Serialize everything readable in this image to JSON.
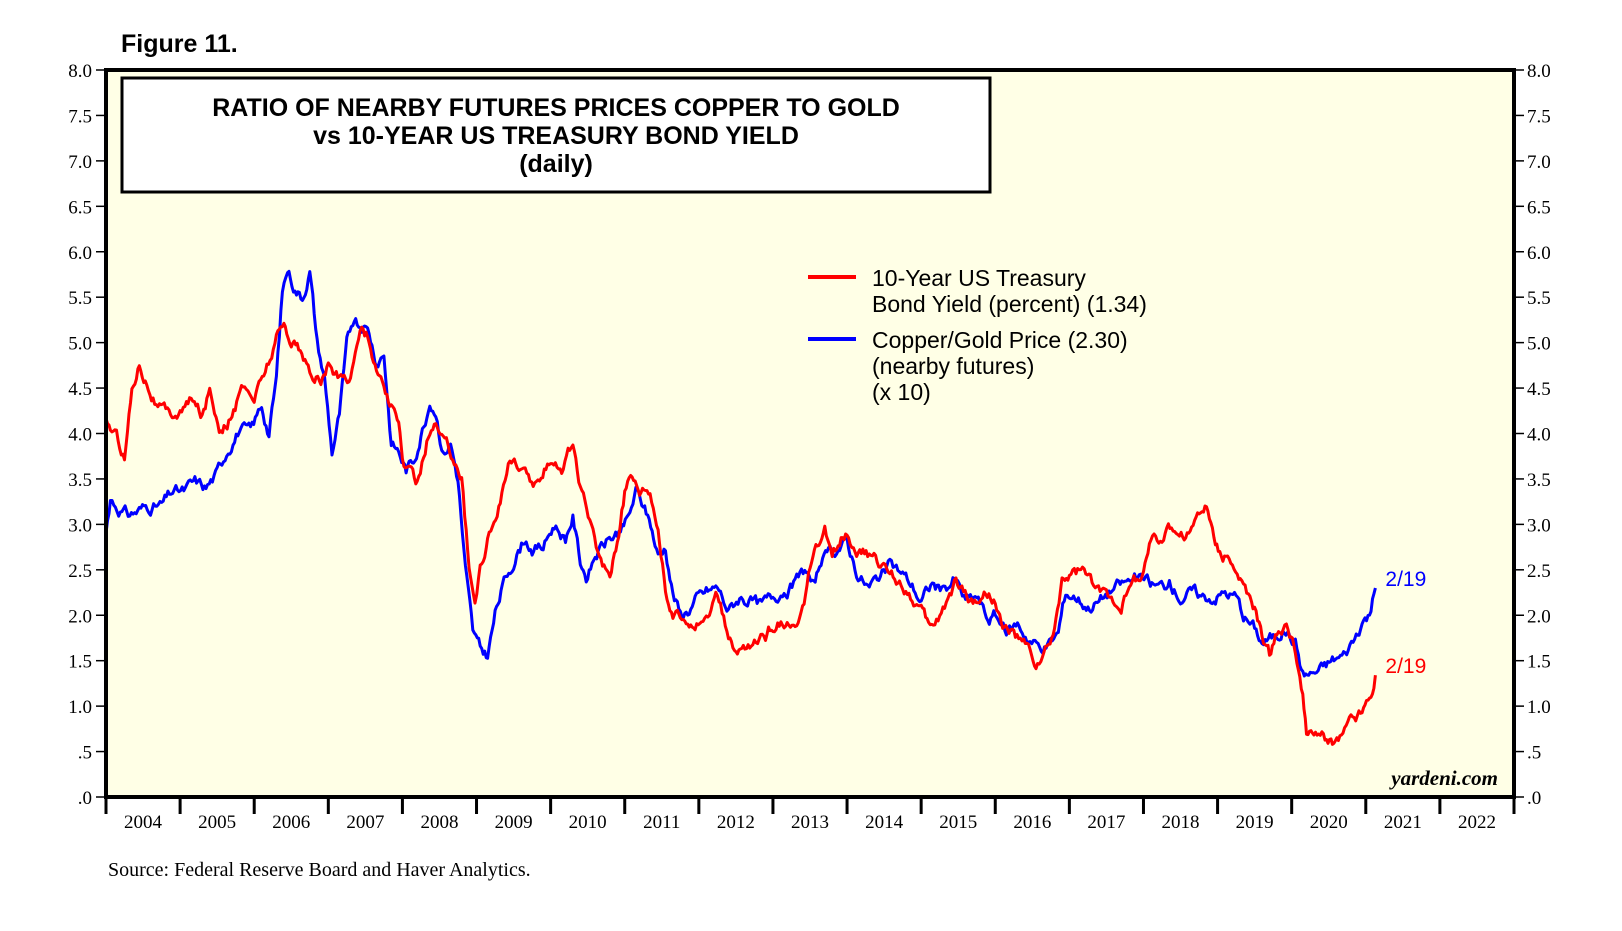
{
  "figure_label": "Figure 11.",
  "source": "Source: Federal Reserve Board and Haver Analytics.",
  "watermark": "yardeni.com",
  "chart_data": {
    "type": "line",
    "title": "RATIO OF NEARBY FUTURES PRICES COPPER TO GOLD",
    "subtitle": "vs 10-YEAR US TREASURY BOND YIELD",
    "frequency_label": "(daily)",
    "xlabel": "",
    "ylabel": "",
    "xlim": [
      2004.0,
      2023.0
    ],
    "ylim": [
      0,
      8
    ],
    "yticks": [
      0,
      0.5,
      1,
      1.5,
      2,
      2.5,
      3,
      3.5,
      4,
      4.5,
      5,
      5.5,
      6,
      6.5,
      7,
      7.5,
      8
    ],
    "ytick_labels": [
      ".0",
      ".5",
      "1.0",
      "1.5",
      "2.0",
      "2.5",
      "3.0",
      "3.5",
      "4.0",
      "4.5",
      "5.0",
      "5.5",
      "6.0",
      "6.5",
      "7.0",
      "7.5",
      "8.0"
    ],
    "year_labels": [
      "2004",
      "2005",
      "2006",
      "2007",
      "2008",
      "2009",
      "2010",
      "2011",
      "2012",
      "2013",
      "2014",
      "2015",
      "2016",
      "2017",
      "2018",
      "2019",
      "2020",
      "2021",
      "2022"
    ],
    "background_color": "#ffffe6",
    "legend_position": "top-center",
    "series": [
      {
        "name": "10-Year US Treasury Bond Yield (percent) (1.34)",
        "legend_lines": [
          "10-Year US Treasury",
          "Bond Yield (percent) (1.34)"
        ],
        "color": "#ff0000",
        "end_label": "2/19",
        "points": [
          [
            2004.0,
            4.15
          ],
          [
            2004.12,
            4.0
          ],
          [
            2004.25,
            3.75
          ],
          [
            2004.35,
            4.5
          ],
          [
            2004.45,
            4.8
          ],
          [
            2004.55,
            4.6
          ],
          [
            2004.7,
            4.3
          ],
          [
            2004.85,
            4.2
          ],
          [
            2005.0,
            4.25
          ],
          [
            2005.15,
            4.35
          ],
          [
            2005.3,
            4.2
          ],
          [
            2005.4,
            4.5
          ],
          [
            2005.55,
            4.05
          ],
          [
            2005.7,
            4.2
          ],
          [
            2005.85,
            4.5
          ],
          [
            2006.0,
            4.4
          ],
          [
            2006.15,
            4.7
          ],
          [
            2006.3,
            5.05
          ],
          [
            2006.4,
            5.2
          ],
          [
            2006.5,
            5.05
          ],
          [
            2006.6,
            4.95
          ],
          [
            2006.75,
            4.65
          ],
          [
            2006.9,
            4.6
          ],
          [
            2007.0,
            4.75
          ],
          [
            2007.15,
            4.6
          ],
          [
            2007.3,
            4.65
          ],
          [
            2007.45,
            5.2
          ],
          [
            2007.55,
            5.05
          ],
          [
            2007.65,
            4.7
          ],
          [
            2007.75,
            4.55
          ],
          [
            2007.85,
            4.3
          ],
          [
            2007.95,
            4.1
          ],
          [
            2008.0,
            3.7
          ],
          [
            2008.1,
            3.55
          ],
          [
            2008.2,
            3.45
          ],
          [
            2008.35,
            4.0
          ],
          [
            2008.45,
            4.1
          ],
          [
            2008.55,
            3.9
          ],
          [
            2008.7,
            3.75
          ],
          [
            2008.8,
            3.55
          ],
          [
            2008.9,
            2.5
          ],
          [
            2008.98,
            2.15
          ],
          [
            2009.05,
            2.55
          ],
          [
            2009.15,
            2.85
          ],
          [
            2009.3,
            3.2
          ],
          [
            2009.45,
            3.75
          ],
          [
            2009.55,
            3.6
          ],
          [
            2009.7,
            3.5
          ],
          [
            2009.85,
            3.4
          ],
          [
            2010.0,
            3.75
          ],
          [
            2010.15,
            3.65
          ],
          [
            2010.3,
            3.9
          ],
          [
            2010.4,
            3.4
          ],
          [
            2010.55,
            2.95
          ],
          [
            2010.7,
            2.55
          ],
          [
            2010.8,
            2.5
          ],
          [
            2010.9,
            2.85
          ],
          [
            2011.0,
            3.35
          ],
          [
            2011.1,
            3.5
          ],
          [
            2011.2,
            3.4
          ],
          [
            2011.3,
            3.45
          ],
          [
            2011.45,
            3.0
          ],
          [
            2011.55,
            2.3
          ],
          [
            2011.65,
            2.0
          ],
          [
            2011.75,
            1.95
          ],
          [
            2011.85,
            2.0
          ],
          [
            2011.95,
            1.95
          ],
          [
            2012.1,
            2.0
          ],
          [
            2012.25,
            2.2
          ],
          [
            2012.4,
            1.75
          ],
          [
            2012.5,
            1.55
          ],
          [
            2012.6,
            1.65
          ],
          [
            2012.75,
            1.7
          ],
          [
            2012.9,
            1.75
          ],
          [
            2013.0,
            1.9
          ],
          [
            2013.15,
            1.95
          ],
          [
            2013.3,
            1.8
          ],
          [
            2013.4,
            2.0
          ],
          [
            2013.5,
            2.5
          ],
          [
            2013.6,
            2.7
          ],
          [
            2013.7,
            2.9
          ],
          [
            2013.8,
            2.65
          ],
          [
            2013.9,
            2.85
          ],
          [
            2014.0,
            2.95
          ],
          [
            2014.15,
            2.7
          ],
          [
            2014.3,
            2.65
          ],
          [
            2014.45,
            2.55
          ],
          [
            2014.6,
            2.45
          ],
          [
            2014.75,
            2.35
          ],
          [
            2014.9,
            2.2
          ],
          [
            2015.0,
            2.05
          ],
          [
            2015.1,
            1.85
          ],
          [
            2015.25,
            2.0
          ],
          [
            2015.45,
            2.35
          ],
          [
            2015.55,
            2.3
          ],
          [
            2015.7,
            2.15
          ],
          [
            2015.85,
            2.25
          ],
          [
            2016.0,
            2.2
          ],
          [
            2016.1,
            1.85
          ],
          [
            2016.25,
            1.8
          ],
          [
            2016.45,
            1.6
          ],
          [
            2016.55,
            1.45
          ],
          [
            2016.7,
            1.6
          ],
          [
            2016.8,
            1.8
          ],
          [
            2016.9,
            2.4
          ],
          [
            2017.0,
            2.45
          ],
          [
            2017.2,
            2.5
          ],
          [
            2017.35,
            2.25
          ],
          [
            2017.5,
            2.25
          ],
          [
            2017.7,
            2.15
          ],
          [
            2017.85,
            2.35
          ],
          [
            2018.0,
            2.45
          ],
          [
            2018.1,
            2.85
          ],
          [
            2018.25,
            2.85
          ],
          [
            2018.4,
            2.95
          ],
          [
            2018.55,
            2.9
          ],
          [
            2018.65,
            2.95
          ],
          [
            2018.75,
            3.15
          ],
          [
            2018.85,
            3.2
          ],
          [
            2018.95,
            2.85
          ],
          [
            2019.05,
            2.7
          ],
          [
            2019.2,
            2.6
          ],
          [
            2019.35,
            2.3
          ],
          [
            2019.5,
            2.05
          ],
          [
            2019.6,
            1.75
          ],
          [
            2019.7,
            1.55
          ],
          [
            2019.8,
            1.8
          ],
          [
            2019.95,
            1.85
          ],
          [
            2020.05,
            1.65
          ],
          [
            2020.15,
            1.1
          ],
          [
            2020.2,
            0.65
          ],
          [
            2020.3,
            0.7
          ],
          [
            2020.45,
            0.65
          ],
          [
            2020.55,
            0.6
          ],
          [
            2020.65,
            0.65
          ],
          [
            2020.8,
            0.85
          ],
          [
            2020.95,
            0.95
          ],
          [
            2021.05,
            1.1
          ],
          [
            2021.13,
            1.34
          ]
        ]
      },
      {
        "name": "Copper/Gold Price (2.30) (nearby futures) (x 10)",
        "legend_lines": [
          "Copper/Gold Price (2.30)",
          "(nearby futures)",
          "(x 10)"
        ],
        "color": "#0000ff",
        "end_label": "2/19",
        "points": [
          [
            2004.0,
            2.9
          ],
          [
            2004.06,
            3.3
          ],
          [
            2004.15,
            3.2
          ],
          [
            2004.3,
            3.1
          ],
          [
            2004.45,
            3.15
          ],
          [
            2004.6,
            3.2
          ],
          [
            2004.75,
            3.2
          ],
          [
            2004.9,
            3.35
          ],
          [
            2005.05,
            3.35
          ],
          [
            2005.2,
            3.45
          ],
          [
            2005.35,
            3.4
          ],
          [
            2005.5,
            3.55
          ],
          [
            2005.65,
            3.85
          ],
          [
            2005.8,
            4.05
          ],
          [
            2005.95,
            4.0
          ],
          [
            2006.1,
            4.3
          ],
          [
            2006.2,
            4.0
          ],
          [
            2006.3,
            4.6
          ],
          [
            2006.38,
            5.55
          ],
          [
            2006.45,
            5.8
          ],
          [
            2006.55,
            5.6
          ],
          [
            2006.65,
            5.5
          ],
          [
            2006.75,
            5.8
          ],
          [
            2006.85,
            5.0
          ],
          [
            2006.95,
            4.6
          ],
          [
            2007.05,
            3.8
          ],
          [
            2007.15,
            4.2
          ],
          [
            2007.25,
            4.95
          ],
          [
            2007.35,
            5.3
          ],
          [
            2007.45,
            5.2
          ],
          [
            2007.55,
            5.1
          ],
          [
            2007.65,
            4.8
          ],
          [
            2007.75,
            4.9
          ],
          [
            2007.85,
            3.9
          ],
          [
            2007.95,
            3.8
          ],
          [
            2008.05,
            3.6
          ],
          [
            2008.15,
            3.7
          ],
          [
            2008.25,
            4.0
          ],
          [
            2008.35,
            4.3
          ],
          [
            2008.45,
            4.25
          ],
          [
            2008.55,
            3.8
          ],
          [
            2008.65,
            3.9
          ],
          [
            2008.75,
            3.5
          ],
          [
            2008.85,
            2.5
          ],
          [
            2008.95,
            1.8
          ],
          [
            2009.05,
            1.6
          ],
          [
            2009.15,
            1.55
          ],
          [
            2009.25,
            2.0
          ],
          [
            2009.35,
            2.3
          ],
          [
            2009.5,
            2.6
          ],
          [
            2009.65,
            2.85
          ],
          [
            2009.75,
            2.75
          ],
          [
            2009.9,
            2.75
          ],
          [
            2010.05,
            3.0
          ],
          [
            2010.2,
            2.85
          ],
          [
            2010.3,
            3.1
          ],
          [
            2010.4,
            2.6
          ],
          [
            2010.5,
            2.4
          ],
          [
            2010.6,
            2.65
          ],
          [
            2010.75,
            2.8
          ],
          [
            2010.9,
            2.9
          ],
          [
            2011.05,
            3.05
          ],
          [
            2011.15,
            3.35
          ],
          [
            2011.25,
            3.2
          ],
          [
            2011.35,
            3.0
          ],
          [
            2011.45,
            2.65
          ],
          [
            2011.55,
            2.75
          ],
          [
            2011.65,
            2.25
          ],
          [
            2011.75,
            2.0
          ],
          [
            2011.85,
            2.05
          ],
          [
            2011.95,
            2.15
          ],
          [
            2012.1,
            2.25
          ],
          [
            2012.25,
            2.3
          ],
          [
            2012.4,
            2.05
          ],
          [
            2012.55,
            2.2
          ],
          [
            2012.7,
            2.15
          ],
          [
            2012.85,
            2.1
          ],
          [
            2013.0,
            2.2
          ],
          [
            2013.15,
            2.3
          ],
          [
            2013.3,
            2.35
          ],
          [
            2013.45,
            2.5
          ],
          [
            2013.55,
            2.3
          ],
          [
            2013.65,
            2.6
          ],
          [
            2013.75,
            2.65
          ],
          [
            2013.9,
            2.75
          ],
          [
            2014.0,
            2.8
          ],
          [
            2014.15,
            2.45
          ],
          [
            2014.3,
            2.3
          ],
          [
            2014.45,
            2.45
          ],
          [
            2014.6,
            2.55
          ],
          [
            2014.75,
            2.45
          ],
          [
            2014.9,
            2.3
          ],
          [
            2015.0,
            2.15
          ],
          [
            2015.15,
            2.35
          ],
          [
            2015.3,
            2.25
          ],
          [
            2015.45,
            2.4
          ],
          [
            2015.6,
            2.15
          ],
          [
            2015.75,
            2.2
          ],
          [
            2015.9,
            1.95
          ],
          [
            2016.0,
            2.0
          ],
          [
            2016.15,
            1.8
          ],
          [
            2016.3,
            1.9
          ],
          [
            2016.45,
            1.75
          ],
          [
            2016.6,
            1.65
          ],
          [
            2016.75,
            1.7
          ],
          [
            2016.85,
            1.8
          ],
          [
            2016.95,
            2.25
          ],
          [
            2017.1,
            2.2
          ],
          [
            2017.25,
            2.1
          ],
          [
            2017.4,
            2.15
          ],
          [
            2017.6,
            2.3
          ],
          [
            2017.75,
            2.35
          ],
          [
            2017.9,
            2.4
          ],
          [
            2018.05,
            2.35
          ],
          [
            2018.2,
            2.3
          ],
          [
            2018.35,
            2.35
          ],
          [
            2018.5,
            2.2
          ],
          [
            2018.65,
            2.25
          ],
          [
            2018.8,
            2.2
          ],
          [
            2018.95,
            2.2
          ],
          [
            2019.1,
            2.25
          ],
          [
            2019.25,
            2.2
          ],
          [
            2019.35,
            2.0
          ],
          [
            2019.5,
            1.85
          ],
          [
            2019.6,
            1.7
          ],
          [
            2019.75,
            1.75
          ],
          [
            2019.9,
            1.85
          ],
          [
            2020.05,
            1.7
          ],
          [
            2020.15,
            1.35
          ],
          [
            2020.25,
            1.35
          ],
          [
            2020.4,
            1.4
          ],
          [
            2020.55,
            1.5
          ],
          [
            2020.7,
            1.55
          ],
          [
            2020.85,
            1.75
          ],
          [
            2020.95,
            1.95
          ],
          [
            2021.05,
            2.0
          ],
          [
            2021.13,
            2.3
          ]
        ]
      }
    ]
  }
}
